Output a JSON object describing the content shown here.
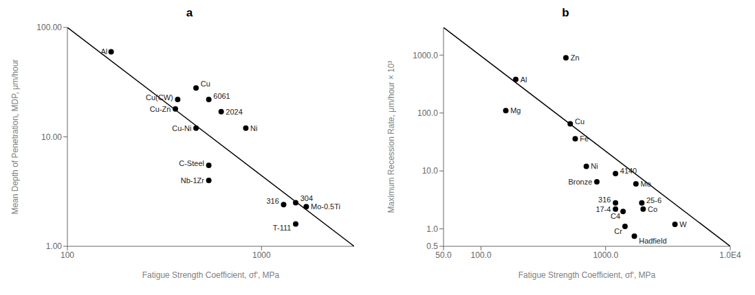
{
  "chart_data": [
    {
      "type": "scatter",
      "title": "a",
      "xlabel": "Fatigue Strength Coefficient, σfʹ, MPa",
      "ylabel": "Mean Depth of Penetration, MDP, μm/hour",
      "log": true,
      "xlim": [
        100,
        3000
      ],
      "ylim": [
        1.0,
        100.0
      ],
      "xticks": [
        100,
        1000
      ],
      "yticks": [
        {
          "value": 1.0,
          "label": "1.00"
        },
        {
          "value": 10.0,
          "label": "10.00"
        },
        {
          "value": 100.0,
          "label": "100.00"
        }
      ],
      "series": [
        {
          "type": "line",
          "color": "#000000",
          "x": [
            100,
            3000
          ],
          "values": [
            100.0,
            1.0
          ]
        },
        {
          "type": "scatter",
          "color": "#000000",
          "x": [
            168,
            460,
            370,
            360,
            460,
            535,
            620,
            830,
            535,
            535,
            1300,
            1500,
            1700,
            1500
          ],
          "values": [
            60,
            28,
            22,
            18,
            12,
            22,
            17,
            12,
            5.5,
            4.0,
            2.4,
            2.5,
            2.3,
            1.6
          ]
        }
      ],
      "annotations": [
        {
          "text": "Al",
          "x": 168,
          "y": 60
        },
        {
          "text": "Cu",
          "x": 460,
          "y": 28
        },
        {
          "text": "Cu(CW)",
          "x": 370,
          "y": 22
        },
        {
          "text": "Cu-Zn",
          "x": 360,
          "y": 18
        },
        {
          "text": "Cu-Ni",
          "x": 460,
          "y": 12
        },
        {
          "text": "6061",
          "x": 535,
          "y": 22
        },
        {
          "text": "2024",
          "x": 620,
          "y": 17
        },
        {
          "text": "Ni",
          "x": 830,
          "y": 12
        },
        {
          "text": "C-Steel",
          "x": 535,
          "y": 5.5
        },
        {
          "text": "Nb-1Zr",
          "x": 535,
          "y": 4.0
        },
        {
          "text": "316",
          "x": 1300,
          "y": 2.4
        },
        {
          "text": "304",
          "x": 1500,
          "y": 2.5
        },
        {
          "text": "Mo-0.5Ti",
          "x": 1700,
          "y": 2.3
        },
        {
          "text": "T-111",
          "x": 1500,
          "y": 1.6
        }
      ]
    },
    {
      "type": "scatter",
      "title": "b",
      "xlabel": "Fatigue Strength Coefficient, σfʹ, MPa",
      "ylabel": "Maximum Recession Rate, μm/hour × 10³",
      "log": true,
      "xlim": [
        50,
        10000
      ],
      "ylim": [
        0.5,
        3000
      ],
      "xticks": [
        {
          "value": 50,
          "label": "50.0"
        },
        {
          "value": 100,
          "label": "100.0"
        },
        {
          "value": 1000,
          "label": "1000.0"
        },
        {
          "value": 10000,
          "label": "1.0E4"
        }
      ],
      "yticks": [
        0.5,
        {
          "value": 1.0,
          "label": "1.0"
        },
        {
          "value": 10.0,
          "label": "10.0"
        },
        {
          "value": 100.0,
          "label": "100.0"
        },
        {
          "value": 1000.0,
          "label": "1000.0"
        }
      ],
      "series": [
        {
          "type": "line",
          "color": "#000000",
          "x": [
            50,
            10000
          ],
          "values": [
            3000,
            0.5
          ]
        },
        {
          "type": "scatter",
          "color": "#000000",
          "x": [
            480,
            190,
            158,
            520,
            570,
            700,
            1200,
            850,
            1750,
            1200,
            1950,
            1200,
            1380,
            2000,
            1430,
            1700,
            3600
          ],
          "values": [
            900,
            380,
            110,
            65,
            36,
            12,
            9.0,
            6.5,
            6.0,
            2.8,
            2.8,
            2.2,
            2.0,
            2.2,
            1.1,
            0.75,
            1.2
          ]
        }
      ],
      "annotations": [
        {
          "text": "Zn",
          "x": 480,
          "y": 900
        },
        {
          "text": "Al",
          "x": 190,
          "y": 380
        },
        {
          "text": "Mg",
          "x": 158,
          "y": 110
        },
        {
          "text": "Cu",
          "x": 520,
          "y": 65
        },
        {
          "text": "Fe",
          "x": 570,
          "y": 36
        },
        {
          "text": "Ni",
          "x": 700,
          "y": 12
        },
        {
          "text": "4140",
          "x": 1200,
          "y": 9.0
        },
        {
          "text": "Bronze",
          "x": 850,
          "y": 6.5
        },
        {
          "text": "Mo",
          "x": 1750,
          "y": 6.0
        },
        {
          "text": "316",
          "x": 1200,
          "y": 2.8
        },
        {
          "text": "25-6",
          "x": 1950,
          "y": 2.8
        },
        {
          "text": "17-4",
          "x": 1200,
          "y": 2.2
        },
        {
          "text": "C4",
          "x": 1380,
          "y": 2.0
        },
        {
          "text": "Co",
          "x": 2000,
          "y": 2.2
        },
        {
          "text": "Cr",
          "x": 1430,
          "y": 1.1
        },
        {
          "text": "Hadfield",
          "x": 1700,
          "y": 0.75
        },
        {
          "text": "W",
          "x": 3600,
          "y": 1.2
        }
      ]
    }
  ]
}
